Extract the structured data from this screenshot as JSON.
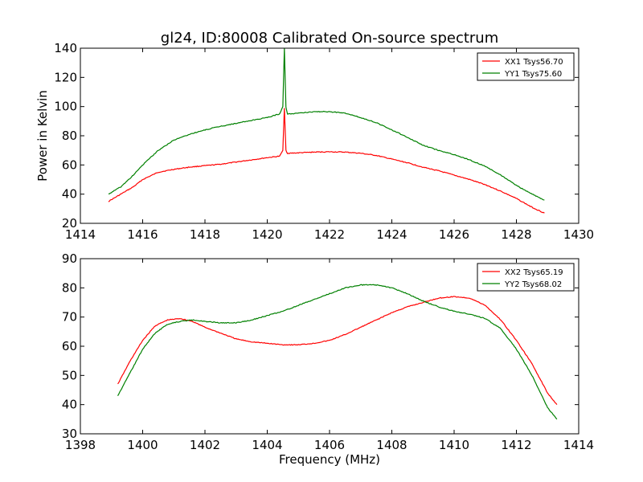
{
  "chart_data": [
    {
      "type": "line",
      "title": "gl24, ID:80008 Calibrated On-source spectrum",
      "xlabel": "",
      "ylabel": "Power in Kelvin",
      "xlim": [
        1414,
        1430
      ],
      "ylim": [
        20,
        140
      ],
      "xticks": [
        1414,
        1416,
        1418,
        1420,
        1422,
        1424,
        1426,
        1428,
        1430
      ],
      "yticks": [
        20,
        40,
        60,
        80,
        100,
        120,
        140
      ],
      "grid": false,
      "legend_position": "top-right",
      "series": [
        {
          "name": "XX1 Tsys56.70",
          "color": "#ff0000",
          "x": [
            1414.9,
            1415.3,
            1415.7,
            1416.0,
            1416.5,
            1417.0,
            1417.5,
            1418.0,
            1418.5,
            1419.0,
            1419.5,
            1420.0,
            1420.4,
            1420.5,
            1420.55,
            1420.6,
            1420.65,
            1420.7,
            1421.0,
            1421.5,
            1422.0,
            1422.5,
            1423.0,
            1423.5,
            1424.0,
            1424.5,
            1425.0,
            1425.5,
            1426.0,
            1426.5,
            1427.0,
            1427.5,
            1428.0,
            1428.5,
            1428.9
          ],
          "y": [
            35,
            40,
            45,
            50,
            55,
            57,
            58.5,
            59.5,
            60.5,
            62,
            63.5,
            65,
            66,
            70,
            99,
            70,
            68,
            68,
            68.3,
            68.8,
            69,
            68.8,
            68,
            66.5,
            64,
            61.5,
            58.5,
            56,
            53,
            50,
            46.5,
            42,
            37,
            31,
            27
          ]
        },
        {
          "name": "YY1 Tsys75.60",
          "color": "#008000",
          "x": [
            1414.9,
            1415.3,
            1415.7,
            1416.0,
            1416.5,
            1417.0,
            1417.5,
            1418.0,
            1418.5,
            1419.0,
            1419.5,
            1420.0,
            1420.4,
            1420.5,
            1420.55,
            1420.6,
            1420.65,
            1420.7,
            1421.0,
            1421.5,
            1422.0,
            1422.5,
            1423.0,
            1423.5,
            1424.0,
            1424.5,
            1425.0,
            1425.5,
            1426.0,
            1426.5,
            1427.0,
            1427.5,
            1428.0,
            1428.5,
            1428.9
          ],
          "y": [
            40,
            45,
            53,
            60,
            70,
            77,
            81,
            84,
            86.5,
            88.5,
            90.5,
            92.5,
            95,
            100,
            140,
            100,
            95,
            95,
            95.5,
            96.5,
            96.5,
            95.5,
            92.5,
            89,
            84,
            79,
            73.5,
            70,
            67,
            63.5,
            59,
            53,
            46,
            40,
            36
          ]
        }
      ]
    },
    {
      "type": "line",
      "title": "",
      "xlabel": "Frequency (MHz)",
      "ylabel": "",
      "xlim": [
        1398,
        1414
      ],
      "ylim": [
        30,
        90
      ],
      "xticks": [
        1398,
        1400,
        1402,
        1404,
        1406,
        1408,
        1410,
        1412,
        1414
      ],
      "yticks": [
        30,
        40,
        50,
        60,
        70,
        80,
        90
      ],
      "grid": false,
      "legend_position": "top-right",
      "series": [
        {
          "name": "XX2 Tsys65.19",
          "color": "#ff0000",
          "x": [
            1399.2,
            1399.6,
            1400.0,
            1400.4,
            1400.8,
            1401.2,
            1401.6,
            1402.0,
            1402.5,
            1403.0,
            1403.5,
            1404.0,
            1404.5,
            1405.0,
            1405.5,
            1406.0,
            1406.5,
            1407.0,
            1407.5,
            1408.0,
            1408.5,
            1409.0,
            1409.5,
            1410.0,
            1410.5,
            1411.0,
            1411.5,
            1412.0,
            1412.5,
            1413.0,
            1413.3
          ],
          "y": [
            47,
            55,
            62,
            67,
            69,
            69.5,
            68.5,
            66.5,
            64.5,
            62.5,
            61.5,
            61,
            60.5,
            60.5,
            61,
            62,
            64,
            66.5,
            69,
            71.5,
            73.5,
            75,
            76.5,
            77,
            76.5,
            74,
            69,
            62,
            54,
            44,
            40
          ]
        },
        {
          "name": "YY2 Tsys68.02",
          "color": "#008000",
          "x": [
            1399.2,
            1399.6,
            1400.0,
            1400.4,
            1400.8,
            1401.2,
            1401.6,
            1402.0,
            1402.5,
            1403.0,
            1403.5,
            1404.0,
            1404.5,
            1405.0,
            1405.5,
            1406.0,
            1406.5,
            1407.0,
            1407.5,
            1408.0,
            1408.5,
            1409.0,
            1409.5,
            1410.0,
            1410.5,
            1411.0,
            1411.5,
            1412.0,
            1412.5,
            1413.0,
            1413.3
          ],
          "y": [
            43,
            51,
            59,
            64.5,
            67.5,
            68.5,
            69,
            68.5,
            68,
            68,
            69,
            70.5,
            72,
            74,
            76,
            78,
            80,
            81,
            81,
            80,
            78,
            75.5,
            73.5,
            72,
            71,
            69.5,
            66,
            59,
            50,
            39,
            35
          ]
        }
      ]
    }
  ]
}
